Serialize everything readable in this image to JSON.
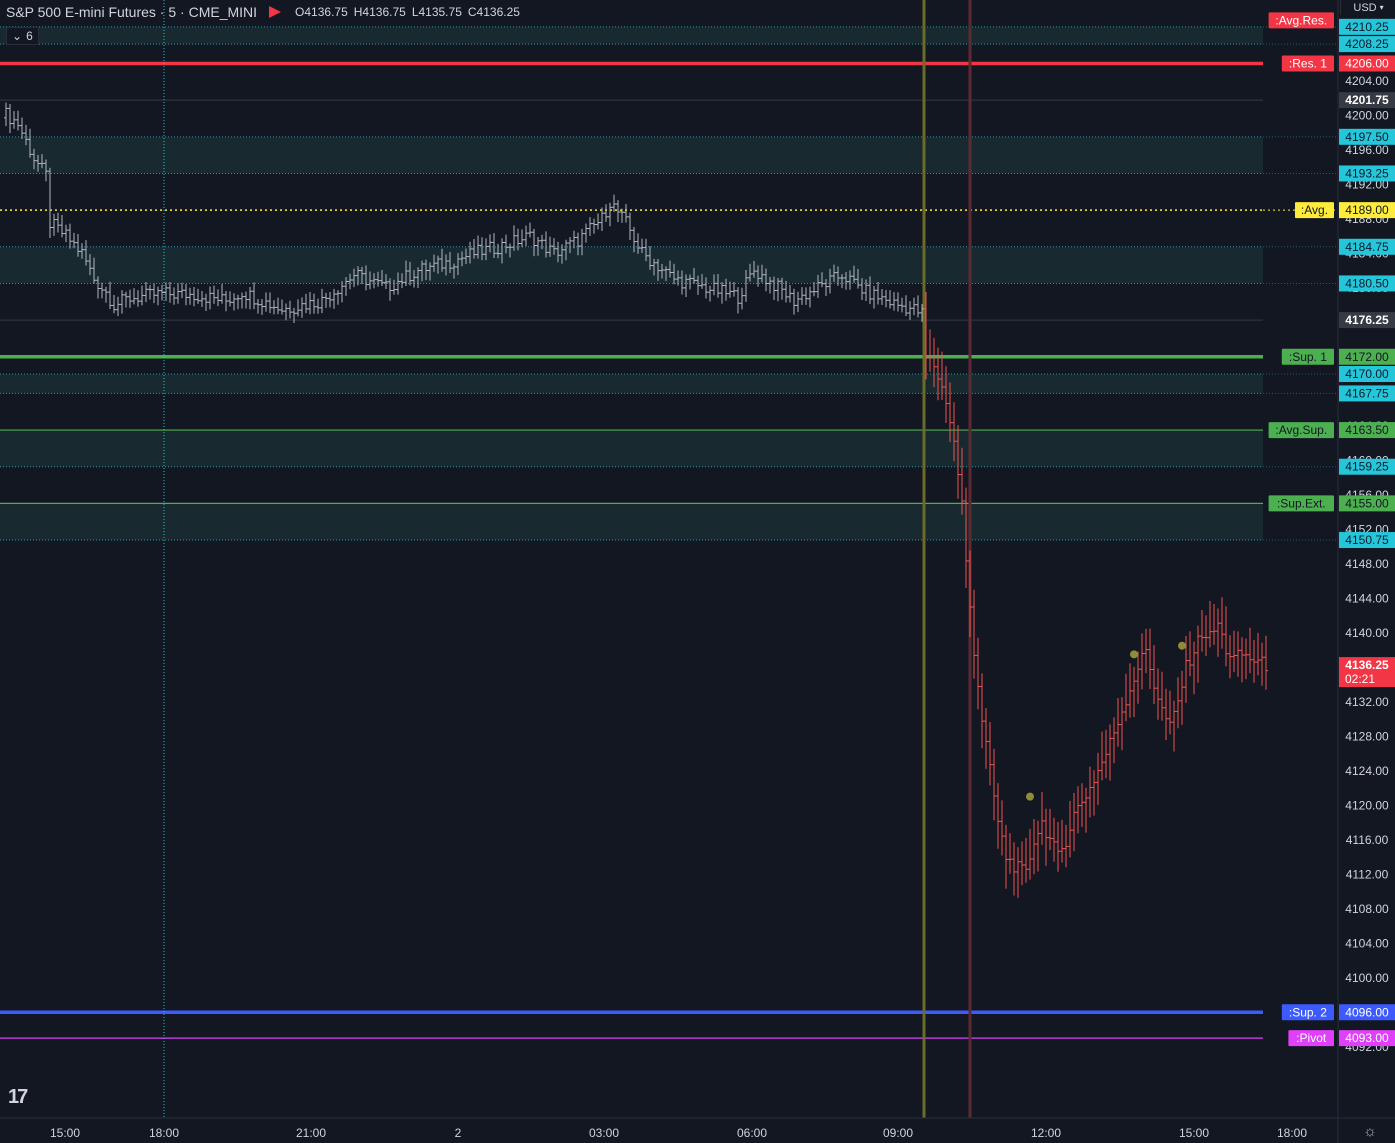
{
  "header": {
    "symbol": "S&P 500 E-mini Futures · 5 · CME_MINI",
    "open": "O4136.75",
    "high": "H4136.75",
    "low": "L4135.75",
    "close": "C4136.25",
    "indicators_collapse": "6"
  },
  "currency": "USD",
  "logo_text": "17",
  "colors": {
    "bg": "#131722",
    "axis": "#d1d4dc",
    "bar_pre": "#b2b5be",
    "bar_post": "#ef5350",
    "zone_line": "#26c6da",
    "band_fill": "#1a2e33"
  },
  "chart_data": {
    "type": "ohlc",
    "title": "S&P 500 E-mini Futures · 5 · CME_MINI",
    "y_ticks": [
      4092,
      4100,
      4104,
      4108,
      4112,
      4116,
      4120,
      4124,
      4128,
      4132,
      4136,
      4140,
      4144,
      4148,
      4152,
      4156,
      4160,
      4164,
      4168,
      4172,
      4180,
      4184,
      4188,
      4192,
      4196,
      4200,
      4204,
      4208
    ],
    "x_ticks": [
      "15:00",
      "18:00",
      "21:00",
      "2",
      "03:00",
      "06:00",
      "09:00",
      "12:00",
      "15:00",
      "18:00"
    ],
    "levels": [
      {
        "label": ":Avg.Res.",
        "price": "4211.00",
        "value": 4211.0,
        "color": "#f23645",
        "style": "none"
      },
      {
        "label": ":Res. 1",
        "price": "4206.00",
        "value": 4206.0,
        "color": "#f23645",
        "style": "thick"
      },
      {
        "label": ":Avg.",
        "price": "4189.00",
        "value": 4189.0,
        "color": "#ffeb3b",
        "style": "dotted"
      },
      {
        "label": ":Sup. 1",
        "price": "4172.00",
        "value": 4172.0,
        "color": "#4caf50",
        "style": "thick"
      },
      {
        "label": ":Avg.Sup.",
        "price": "4163.50",
        "value": 4163.5,
        "color": "#4caf50",
        "style": "solid"
      },
      {
        "label": ":Sup.Ext.",
        "price": "4155.00",
        "value": 4155.0,
        "color": "#4caf50",
        "style": "solid"
      },
      {
        "label": ":Sup. 2",
        "price": "4096.00",
        "value": 4096.0,
        "color": "#3d5afe",
        "style": "thick"
      },
      {
        "label": ":Pivot",
        "price": "4093.00",
        "value": 4093.0,
        "color": "#e040fb",
        "style": "solid"
      }
    ],
    "zone_levels": [
      {
        "price": "4210.25",
        "value": 4210.25
      },
      {
        "price": "4208.25",
        "value": 4208.25
      },
      {
        "price": "4197.50",
        "value": 4197.5
      },
      {
        "price": "4193.25",
        "value": 4193.25
      },
      {
        "price": "4184.75",
        "value": 4184.75
      },
      {
        "price": "4180.50",
        "value": 4180.5
      },
      {
        "price": "4170.00",
        "value": 4170.0
      },
      {
        "price": "4167.75",
        "value": 4167.75
      },
      {
        "price": "4159.25",
        "value": 4159.25
      },
      {
        "price": "4150.75",
        "value": 4150.75
      }
    ],
    "bands": [
      [
        4208.25,
        4210.25
      ],
      [
        4193.25,
        4197.5
      ],
      [
        4180.5,
        4184.75
      ],
      [
        4167.75,
        4170.0
      ],
      [
        4159.25,
        4163.5
      ],
      [
        4150.75,
        4155.0
      ]
    ],
    "ref_prices": [
      {
        "price": "4201.75",
        "value": 4201.75
      },
      {
        "price": "4176.25",
        "value": 4176.25
      }
    ],
    "last_price": {
      "price": "4136.25",
      "value": 4136.25,
      "countdown": "02:21"
    },
    "path_points": [
      [
        0,
        4200.5
      ],
      [
        4,
        4199.0
      ],
      [
        8,
        4195.0
      ],
      [
        11,
        4193.0
      ],
      [
        12,
        4187.5
      ],
      [
        16,
        4186.0
      ],
      [
        20,
        4184.0
      ],
      [
        23,
        4181.0
      ],
      [
        26,
        4179.5
      ],
      [
        28,
        4178.0
      ],
      [
        32,
        4178.8
      ],
      [
        40,
        4179.3
      ],
      [
        48,
        4179.2
      ],
      [
        56,
        4178.5
      ],
      [
        60,
        4179.5
      ],
      [
        70,
        4177.5
      ],
      [
        80,
        4178.5
      ],
      [
        88,
        4181.5
      ],
      [
        96,
        4180.0
      ],
      [
        104,
        4182.0
      ],
      [
        112,
        4183.0
      ],
      [
        118,
        4184.0
      ],
      [
        126,
        4185.0
      ],
      [
        132,
        4186.0
      ],
      [
        138,
        4184.0
      ],
      [
        144,
        4185.5
      ],
      [
        150,
        4188.0
      ],
      [
        152,
        4190.0
      ],
      [
        156,
        4187.5
      ],
      [
        160,
        4184.0
      ],
      [
        168,
        4181.0
      ],
      [
        176,
        4180.0
      ],
      [
        184,
        4179.0
      ],
      [
        188,
        4182.0
      ],
      [
        194,
        4180.0
      ],
      [
        198,
        4178.5
      ],
      [
        204,
        4180.0
      ],
      [
        210,
        4181.5
      ],
      [
        216,
        4179.5
      ],
      [
        224,
        4178.0
      ],
      [
        228,
        4177.5
      ],
      [
        230,
        4177.0
      ],
      [
        231,
        4172.0
      ],
      [
        233,
        4171.0
      ],
      [
        236,
        4167.0
      ],
      [
        238,
        4162.0
      ],
      [
        240,
        4155.0
      ],
      [
        241,
        4148.0
      ],
      [
        243,
        4138.0
      ],
      [
        245,
        4130.0
      ],
      [
        247,
        4124.0
      ],
      [
        249,
        4118.0
      ],
      [
        251,
        4114.0
      ],
      [
        253,
        4113.0
      ],
      [
        256,
        4112.0
      ],
      [
        258,
        4116.0
      ],
      [
        260,
        4118.0
      ],
      [
        262,
        4116.0
      ],
      [
        264,
        4114.0
      ],
      [
        266,
        4116.0
      ],
      [
        268,
        4119.0
      ],
      [
        272,
        4122.0
      ],
      [
        276,
        4126.0
      ],
      [
        280,
        4131.0
      ],
      [
        284,
        4136.0
      ],
      [
        286,
        4138.0
      ],
      [
        288,
        4134.0
      ],
      [
        290,
        4131.0
      ],
      [
        292,
        4129.0
      ],
      [
        294,
        4132.0
      ],
      [
        296,
        4136.0
      ],
      [
        298,
        4138.0
      ],
      [
        300,
        4140.0
      ],
      [
        302,
        4139.5
      ],
      [
        304,
        4141.0
      ],
      [
        306,
        4138.0
      ],
      [
        308,
        4137.0
      ],
      [
        310,
        4137.5
      ],
      [
        312,
        4137.0
      ],
      [
        316,
        4136.25
      ]
    ],
    "dots": [
      [
        257,
        4121.0
      ],
      [
        283,
        4137.5
      ],
      [
        295,
        4138.5
      ]
    ],
    "session_split_index": 230,
    "verticals": [
      {
        "index": 40.5,
        "color": "#26c6da",
        "style": "dotted"
      },
      {
        "index": 230.5,
        "color": "#6b6b2a",
        "style": "solid"
      },
      {
        "index": 242,
        "color": "#5c2a33",
        "style": "solid"
      }
    ]
  }
}
